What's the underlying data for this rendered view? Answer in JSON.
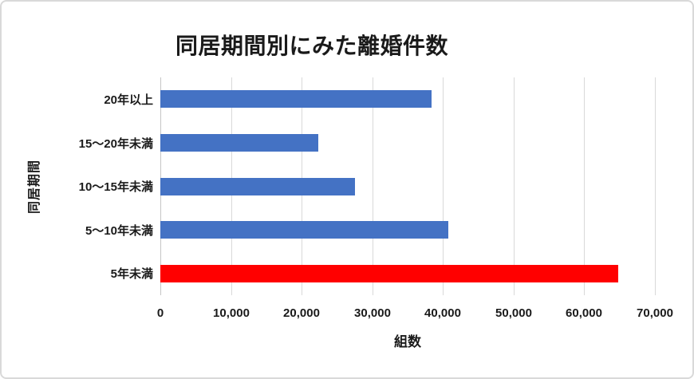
{
  "window": {
    "background": "#FFFFFF",
    "border_color": "#D9D9D9"
  },
  "chart_data": {
    "type": "bar",
    "orientation": "horizontal",
    "title": "同居期間別にみた離婚件数",
    "xlabel": "組数",
    "ylabel": "同居期間",
    "categories": [
      "20年以上",
      "15〜20年未満",
      "10〜15年未満",
      "5〜10年未満",
      "5年未満"
    ],
    "values": [
      38400,
      22400,
      27600,
      40800,
      64800
    ],
    "bar_colors": [
      "#4472C4",
      "#4472C4",
      "#4472C4",
      "#4472C4",
      "#FF0000"
    ],
    "xlim": [
      0,
      70000
    ],
    "x_tick_values": [
      0,
      10000,
      20000,
      30000,
      40000,
      50000,
      60000,
      70000
    ],
    "x_tick_labels": [
      "0",
      "10,000",
      "20,000",
      "30,000",
      "40,000",
      "50,000",
      "60,000",
      "70,000"
    ],
    "grid": true,
    "legend": "none",
    "colors": {
      "grid_line": "#D9D9D9",
      "axis_line": "#C6C6C6",
      "text": "#1A1A1A"
    }
  }
}
